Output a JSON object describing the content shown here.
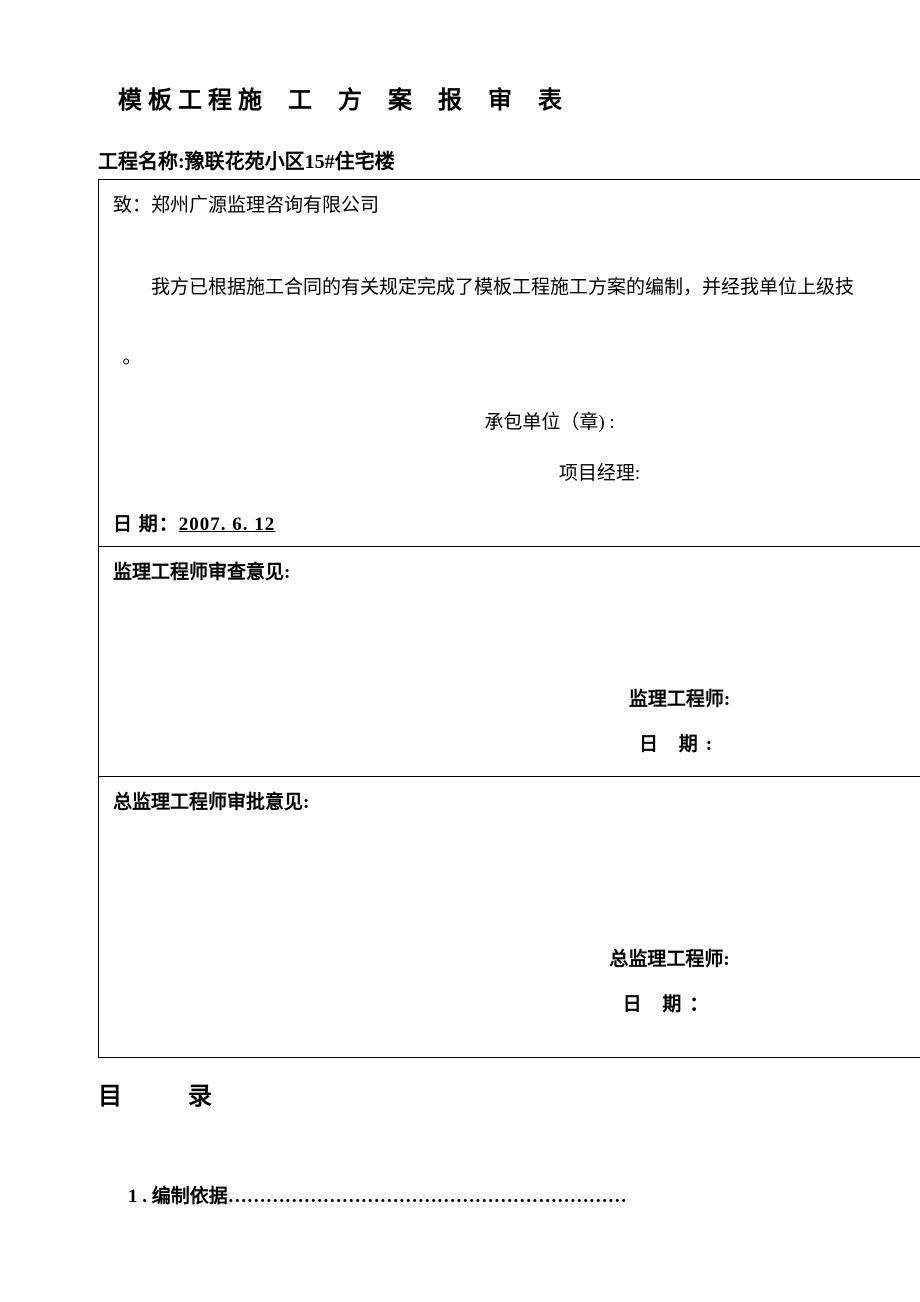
{
  "title_part1": "模板工程施",
  "title_part2": "工 方 案 报 审 表",
  "project_name_label": "工程名称:",
  "project_name_value": "豫联花苑小区15#住宅楼",
  "section1": {
    "to_label": "致：",
    "to_value": "郑州广源监理咨询有限公司",
    "body": "我方已根据施工合同的有关规定完成了模板工程施工方案的编制，并经我单位上级技",
    "body_end": "。",
    "stamp_label": "承包单位（章) :",
    "pm_label": "项目经理:",
    "date_label": "日   期：",
    "date_value": "2007.   6.      12"
  },
  "section2": {
    "title": "监理工程师审查意见:",
    "sig_label": "监理工程师:",
    "date_label": "日     期:"
  },
  "section3": {
    "title": "总监理工程师审批意见:",
    "sig_label": "总监理工程师:",
    "date_label": "日   期："
  },
  "toc": {
    "title": "目  录",
    "item1_num": "1 . ",
    "item1_text": "编制依据",
    "item1_dots": "………………………………………………………"
  }
}
